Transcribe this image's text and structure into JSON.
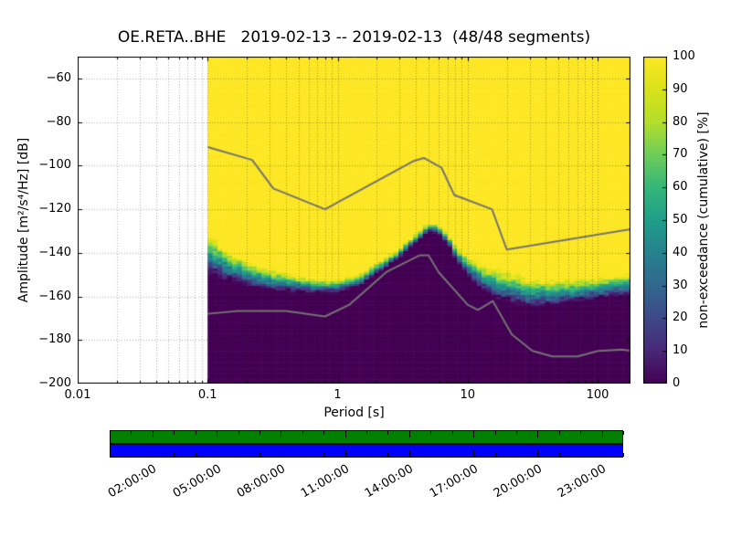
{
  "chart_data": {
    "type": "heatmap",
    "title": "OE.RETA..BHE   2019-02-13 -- 2019-02-13  (48/48 segments)",
    "xlabel": "Period [s]",
    "ylabel": "Amplitude [m²/s⁴/Hz] [dB]",
    "xscale": "log",
    "xlim": [
      0.01,
      179
    ],
    "ylim": [
      -200,
      -50
    ],
    "xticks": [
      0.01,
      0.1,
      1,
      10,
      100
    ],
    "yticks": [
      -200,
      -180,
      -160,
      -140,
      -120,
      -100,
      -80,
      -60
    ],
    "grid": true,
    "data_extent": {
      "period": [
        0.1,
        179
      ],
      "db": [
        -200,
        -50
      ]
    },
    "colorbar": {
      "label": "non-exceedance (cumulative) [%]",
      "min": 0,
      "max": 100,
      "ticks": [
        0,
        10,
        20,
        30,
        40,
        50,
        60,
        70,
        80,
        90,
        100
      ],
      "colormap": "viridis",
      "stops": [
        "#440154",
        "#482878",
        "#3e4989",
        "#31688e",
        "#26828e",
        "#1f9e89",
        "#35b779",
        "#6dcd59",
        "#b4de2c",
        "#d8e219",
        "#fde725"
      ]
    },
    "cumulative_transition": {
      "note": "[period_s, center_dB, width_dB] where non-exceedance rises 0 to 100%",
      "points": [
        [
          0.1,
          -140,
          16
        ],
        [
          0.15,
          -146,
          13
        ],
        [
          0.2,
          -149,
          11
        ],
        [
          0.3,
          -152,
          9
        ],
        [
          0.5,
          -154,
          7
        ],
        [
          0.7,
          -155,
          6
        ],
        [
          1.0,
          -155,
          5
        ],
        [
          1.5,
          -152,
          5
        ],
        [
          2.0,
          -147,
          5
        ],
        [
          3.0,
          -140,
          4
        ],
        [
          4.0,
          -133,
          4
        ],
        [
          5.0,
          -128,
          4
        ],
        [
          6.0,
          -129,
          4
        ],
        [
          7.0,
          -133,
          5
        ],
        [
          8.0,
          -139,
          6
        ],
        [
          10.0,
          -146,
          8
        ],
        [
          13.0,
          -151,
          10
        ],
        [
          17.0,
          -154,
          12
        ],
        [
          22.0,
          -156,
          13
        ],
        [
          30.0,
          -158,
          13
        ],
        [
          45.0,
          -158,
          11
        ],
        [
          70.0,
          -157,
          10
        ],
        [
          100.0,
          -156,
          9
        ],
        [
          140.0,
          -155,
          9
        ],
        [
          179.0,
          -154,
          10
        ]
      ]
    },
    "noise_models": {
      "color": "#737373",
      "nhnm": [
        [
          0.1,
          -91.5
        ],
        [
          0.22,
          -97.4
        ],
        [
          0.32,
          -110.5
        ],
        [
          0.8,
          -120.0
        ],
        [
          3.8,
          -98.0
        ],
        [
          4.6,
          -96.5
        ],
        [
          6.3,
          -101.0
        ],
        [
          7.9,
          -113.5
        ],
        [
          15.4,
          -120.0
        ],
        [
          20.0,
          -138.5
        ],
        [
          179.0,
          -129.2
        ]
      ],
      "nlnm": [
        [
          0.1,
          -168.0
        ],
        [
          0.17,
          -166.7
        ],
        [
          0.4,
          -166.7
        ],
        [
          0.8,
          -169.2
        ],
        [
          1.24,
          -163.7
        ],
        [
          2.4,
          -148.6
        ],
        [
          4.3,
          -141.1
        ],
        [
          5.0,
          -141.1
        ],
        [
          6.0,
          -149.0
        ],
        [
          10.0,
          -163.8
        ],
        [
          12.0,
          -166.2
        ],
        [
          15.6,
          -162.1
        ],
        [
          21.9,
          -177.5
        ],
        [
          31.6,
          -185.0
        ],
        [
          45.0,
          -187.5
        ],
        [
          70.0,
          -187.5
        ],
        [
          101.0,
          -185.0
        ],
        [
          154.0,
          -184.4
        ],
        [
          179.0,
          -184.9
        ]
      ]
    },
    "availability": {
      "row_colors": [
        "#008000",
        "#0000ff"
      ],
      "hours_span": [
        0,
        24
      ],
      "tick_hours": [
        2,
        5,
        8,
        11,
        14,
        17,
        20,
        23
      ],
      "tick_labels": [
        "02:00:00",
        "05:00:00",
        "08:00:00",
        "11:00:00",
        "14:00:00",
        "17:00:00",
        "20:00:00",
        "23:00:00"
      ]
    }
  }
}
